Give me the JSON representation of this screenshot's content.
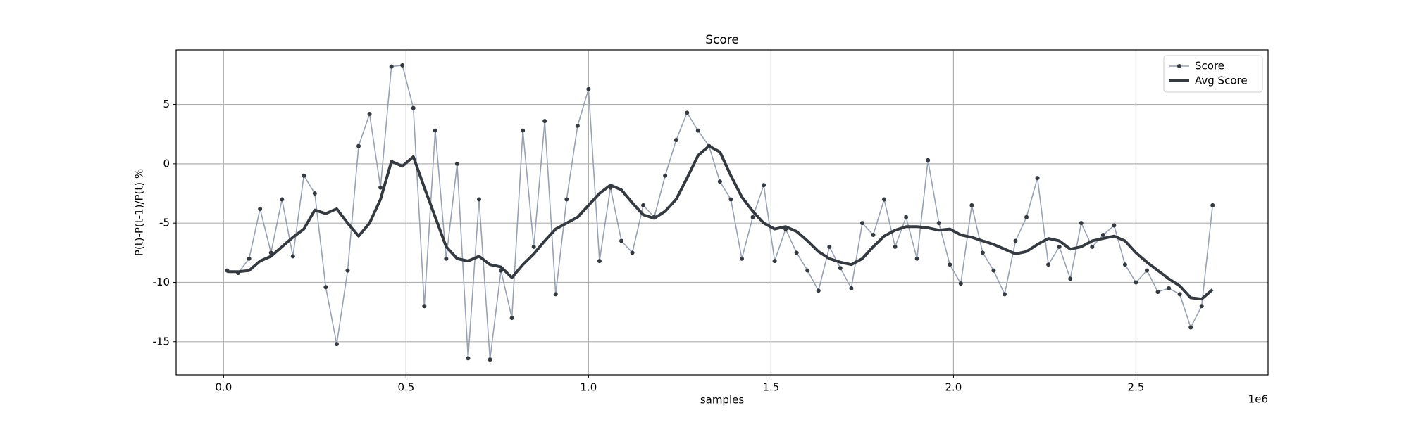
{
  "chart_data": {
    "type": "line",
    "title": "Score",
    "xlabel": "samples",
    "ylabel": "P(t)-P(t-1)/P(t) %",
    "x_offset_label": "1e6",
    "x": [
      10000,
      40000,
      70000,
      100000,
      130000,
      160000,
      190000,
      220000,
      250000,
      280000,
      310000,
      340000,
      370000,
      400000,
      430000,
      460000,
      490000,
      520000,
      550000,
      580000,
      610000,
      640000,
      670000,
      700000,
      730000,
      760000,
      790000,
      820000,
      850000,
      880000,
      910000,
      940000,
      970000,
      1000000,
      1030000,
      1060000,
      1090000,
      1120000,
      1150000,
      1180000,
      1210000,
      1240000,
      1270000,
      1300000,
      1330000,
      1360000,
      1390000,
      1420000,
      1450000,
      1480000,
      1510000,
      1540000,
      1570000,
      1600000,
      1630000,
      1660000,
      1690000,
      1720000,
      1750000,
      1780000,
      1810000,
      1840000,
      1870000,
      1900000,
      1930000,
      1960000,
      1990000,
      2020000,
      2050000,
      2080000,
      2110000,
      2140000,
      2170000,
      2200000,
      2230000,
      2260000,
      2290000,
      2320000,
      2350000,
      2380000,
      2410000,
      2440000,
      2470000,
      2500000,
      2530000,
      2560000,
      2590000,
      2620000,
      2650000,
      2680000,
      2710000
    ],
    "series": [
      {
        "name": "Score",
        "color": "#99a1b3",
        "marker": true,
        "marker_color": "#343a40",
        "values": [
          -9.0,
          -9.2,
          -8.0,
          -3.8,
          -7.5,
          -3.0,
          -7.8,
          -1.0,
          -2.5,
          -10.4,
          -15.2,
          -9.0,
          1.5,
          4.2,
          -2.0,
          8.2,
          8.3,
          4.7,
          -12.0,
          2.8,
          -8.0,
          0.0,
          -16.4,
          -3.0,
          -16.5,
          -9.0,
          -13.0,
          2.8,
          -7.0,
          3.6,
          -11.0,
          -3.0,
          3.2,
          6.3,
          -8.2,
          -2.0,
          -6.5,
          -7.5,
          -3.5,
          -4.5,
          -1.0,
          2.0,
          4.3,
          2.8,
          1.5,
          -1.5,
          -3.0,
          -8.0,
          -4.5,
          -1.8,
          -8.2,
          -5.5,
          -7.5,
          -9.0,
          -10.7,
          -7.0,
          -8.8,
          -10.5,
          -5.0,
          -6.0,
          -3.0,
          -7.0,
          -4.5,
          -8.0,
          0.3,
          -5.0,
          -8.5,
          -10.1,
          -3.5,
          -7.5,
          -9.0,
          -11.0,
          -6.5,
          -4.5,
          -1.2,
          -8.5,
          -7.0,
          -9.7,
          -5.0,
          -7.0,
          -6.0,
          -5.2,
          -8.5,
          -10.0,
          -9.0,
          -10.8,
          -10.5,
          -11.0,
          -13.8,
          -12.0,
          -3.5
        ]
      },
      {
        "name": "Avg Score",
        "color": "#343a40",
        "marker": false,
        "values": [
          -9.1,
          -9.1,
          -9.0,
          -8.2,
          -7.8,
          -7.0,
          -6.2,
          -5.5,
          -3.9,
          -4.2,
          -3.8,
          -5.0,
          -6.1,
          -5.0,
          -3.0,
          0.2,
          -0.2,
          0.6,
          -2.0,
          -4.5,
          -7.0,
          -8.0,
          -8.2,
          -7.8,
          -8.5,
          -8.7,
          -9.6,
          -8.5,
          -7.6,
          -6.5,
          -5.5,
          -5.0,
          -4.5,
          -3.5,
          -2.5,
          -1.8,
          -2.2,
          -3.3,
          -4.3,
          -4.6,
          -4.0,
          -3.0,
          -1.2,
          0.7,
          1.5,
          1.0,
          -1.0,
          -2.8,
          -4.0,
          -5.0,
          -5.5,
          -5.3,
          -5.7,
          -6.5,
          -7.4,
          -8.0,
          -8.3,
          -8.5,
          -8.0,
          -7.0,
          -6.1,
          -5.6,
          -5.3,
          -5.3,
          -5.4,
          -5.6,
          -5.5,
          -6.0,
          -6.2,
          -6.5,
          -6.8,
          -7.2,
          -7.6,
          -7.4,
          -6.8,
          -6.3,
          -6.5,
          -7.2,
          -7.0,
          -6.5,
          -6.3,
          -6.1,
          -6.5,
          -7.5,
          -8.3,
          -9.0,
          -9.7,
          -10.3,
          -11.3,
          -11.4,
          -10.6
        ]
      }
    ],
    "xlim": [
      -130000,
      2862000
    ],
    "ylim": [
      -17.8,
      9.6
    ],
    "xticks": [
      {
        "value": 0,
        "label": "0.0"
      },
      {
        "value": 500000,
        "label": "0.5"
      },
      {
        "value": 1000000,
        "label": "1.0"
      },
      {
        "value": 1500000,
        "label": "1.5"
      },
      {
        "value": 2000000,
        "label": "2.0"
      },
      {
        "value": 2500000,
        "label": "2.5"
      }
    ],
    "yticks": [
      -15,
      -10,
      -5,
      0,
      5
    ],
    "grid": true,
    "legend": "upper right"
  }
}
